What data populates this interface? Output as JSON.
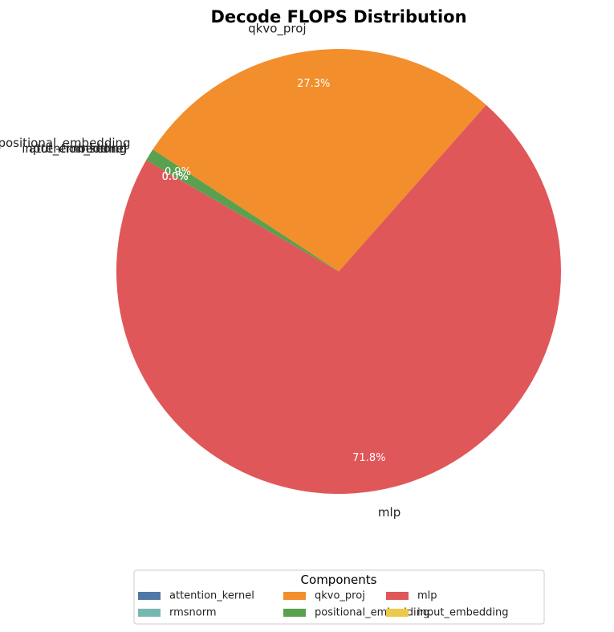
{
  "chart_data": {
    "type": "pie",
    "title": "Decode FLOPS Distribution",
    "start_angle_deg": 150,
    "direction": "counterclockwise",
    "slices": [
      {
        "label": "mlp",
        "value": 71.8,
        "pct_label": "71.8%",
        "color": "#e05759"
      },
      {
        "label": "qkvo_proj",
        "value": 27.3,
        "pct_label": "27.3%",
        "color": "#f28e2c"
      },
      {
        "label": "positional_embedding",
        "value": 0.9,
        "pct_label": "0.9%",
        "color": "#59a14f"
      },
      {
        "label": "attention_kernel",
        "value": 0.0,
        "pct_label": "0.0%",
        "color": "#4e79a7"
      },
      {
        "label": "input_embedding",
        "value": 0.0,
        "pct_label": "0.0%",
        "color": "#edc949"
      },
      {
        "label": "rmsnorm",
        "value": 0.0,
        "pct_label": "0.0%",
        "color": "#76b7b2"
      }
    ],
    "legend": {
      "title": "Components",
      "placement": "bottom-center",
      "columns": 3,
      "entries": [
        {
          "label": "attention_kernel",
          "color": "#4e79a7"
        },
        {
          "label": "qkvo_proj",
          "color": "#f28e2c"
        },
        {
          "label": "mlp",
          "color": "#e05759"
        },
        {
          "label": "rmsnorm",
          "color": "#76b7b2"
        },
        {
          "label": "positional_embedding",
          "color": "#59a14f"
        },
        {
          "label": "input_embedding",
          "color": "#edc949"
        }
      ]
    }
  }
}
